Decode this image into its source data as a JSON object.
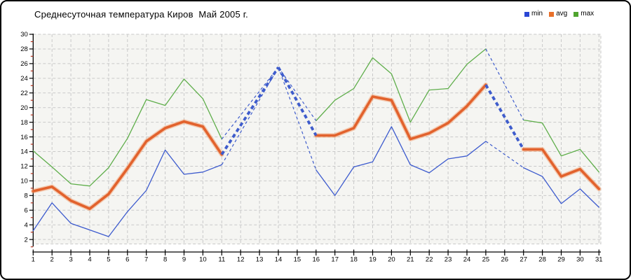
{
  "title": "Среднесуточная температура Киров  Май 2005 г.",
  "legend": {
    "position": "top-right",
    "items": [
      {
        "label": "min",
        "color": "#2a46d4"
      },
      {
        "label": "avg",
        "color": "#e8702a"
      },
      {
        "label": "max",
        "color": "#4fa42e"
      }
    ]
  },
  "chart_data": {
    "type": "line",
    "title": "Среднесуточная температура Киров  Май 2005 г.",
    "xlabel": "",
    "ylabel": "",
    "x": [
      1,
      2,
      3,
      4,
      5,
      6,
      7,
      8,
      9,
      10,
      11,
      12,
      13,
      14,
      15,
      16,
      17,
      18,
      19,
      20,
      21,
      22,
      23,
      24,
      25,
      26,
      27,
      28,
      29,
      30,
      31
    ],
    "series": [
      {
        "name": "min",
        "color": "#3d5bce",
        "line_width": 1.3,
        "values": [
          3.2,
          7.0,
          4.2,
          3.3,
          2.4,
          5.8,
          8.7,
          14.2,
          10.9,
          11.2,
          12.2,
          null,
          null,
          25.5,
          null,
          11.5,
          8.0,
          11.9,
          12.6,
          17.4,
          12.2,
          11.1,
          13.0,
          13.4,
          15.4,
          null,
          11.8,
          10.6,
          6.9,
          8.9,
          6.4
        ]
      },
      {
        "name": "avg",
        "color": "#e2622d",
        "line_width": 3.6,
        "values": [
          8.6,
          9.2,
          7.3,
          6.2,
          8.2,
          11.7,
          15.4,
          17.2,
          18.1,
          17.4,
          13.6,
          null,
          null,
          25.5,
          null,
          16.2,
          16.2,
          17.2,
          21.5,
          21.0,
          15.7,
          16.5,
          17.9,
          20.2,
          23.1,
          null,
          14.3,
          14.3,
          10.6,
          11.6,
          8.9
        ]
      },
      {
        "name": "max",
        "color": "#5fae4b",
        "line_width": 1.3,
        "values": [
          14.1,
          11.9,
          9.6,
          9.3,
          11.8,
          15.8,
          21.1,
          20.3,
          23.9,
          21.2,
          15.7,
          null,
          null,
          25.5,
          null,
          18.2,
          21.0,
          22.6,
          26.8,
          24.6,
          18.0,
          22.4,
          22.6,
          25.9,
          28.0,
          null,
          18.3,
          17.9,
          13.4,
          14.3,
          11.2
        ]
      }
    ],
    "missing_days_interpolated_dashed": [
      12,
      13,
      15,
      26
    ],
    "gap_dash_color": "#3e5ccc",
    "ylim": [
      2,
      30
    ],
    "y_axis": {
      "min": 2,
      "max": 30,
      "major_step": 2,
      "minor_step": 2,
      "minor_tick_color": "#b5341f"
    },
    "grid": {
      "show": true,
      "color": "#c9c9c9",
      "dash": [
        4,
        3
      ],
      "plot_background": "#f5f5f2"
    },
    "legend_position": "top-right"
  }
}
